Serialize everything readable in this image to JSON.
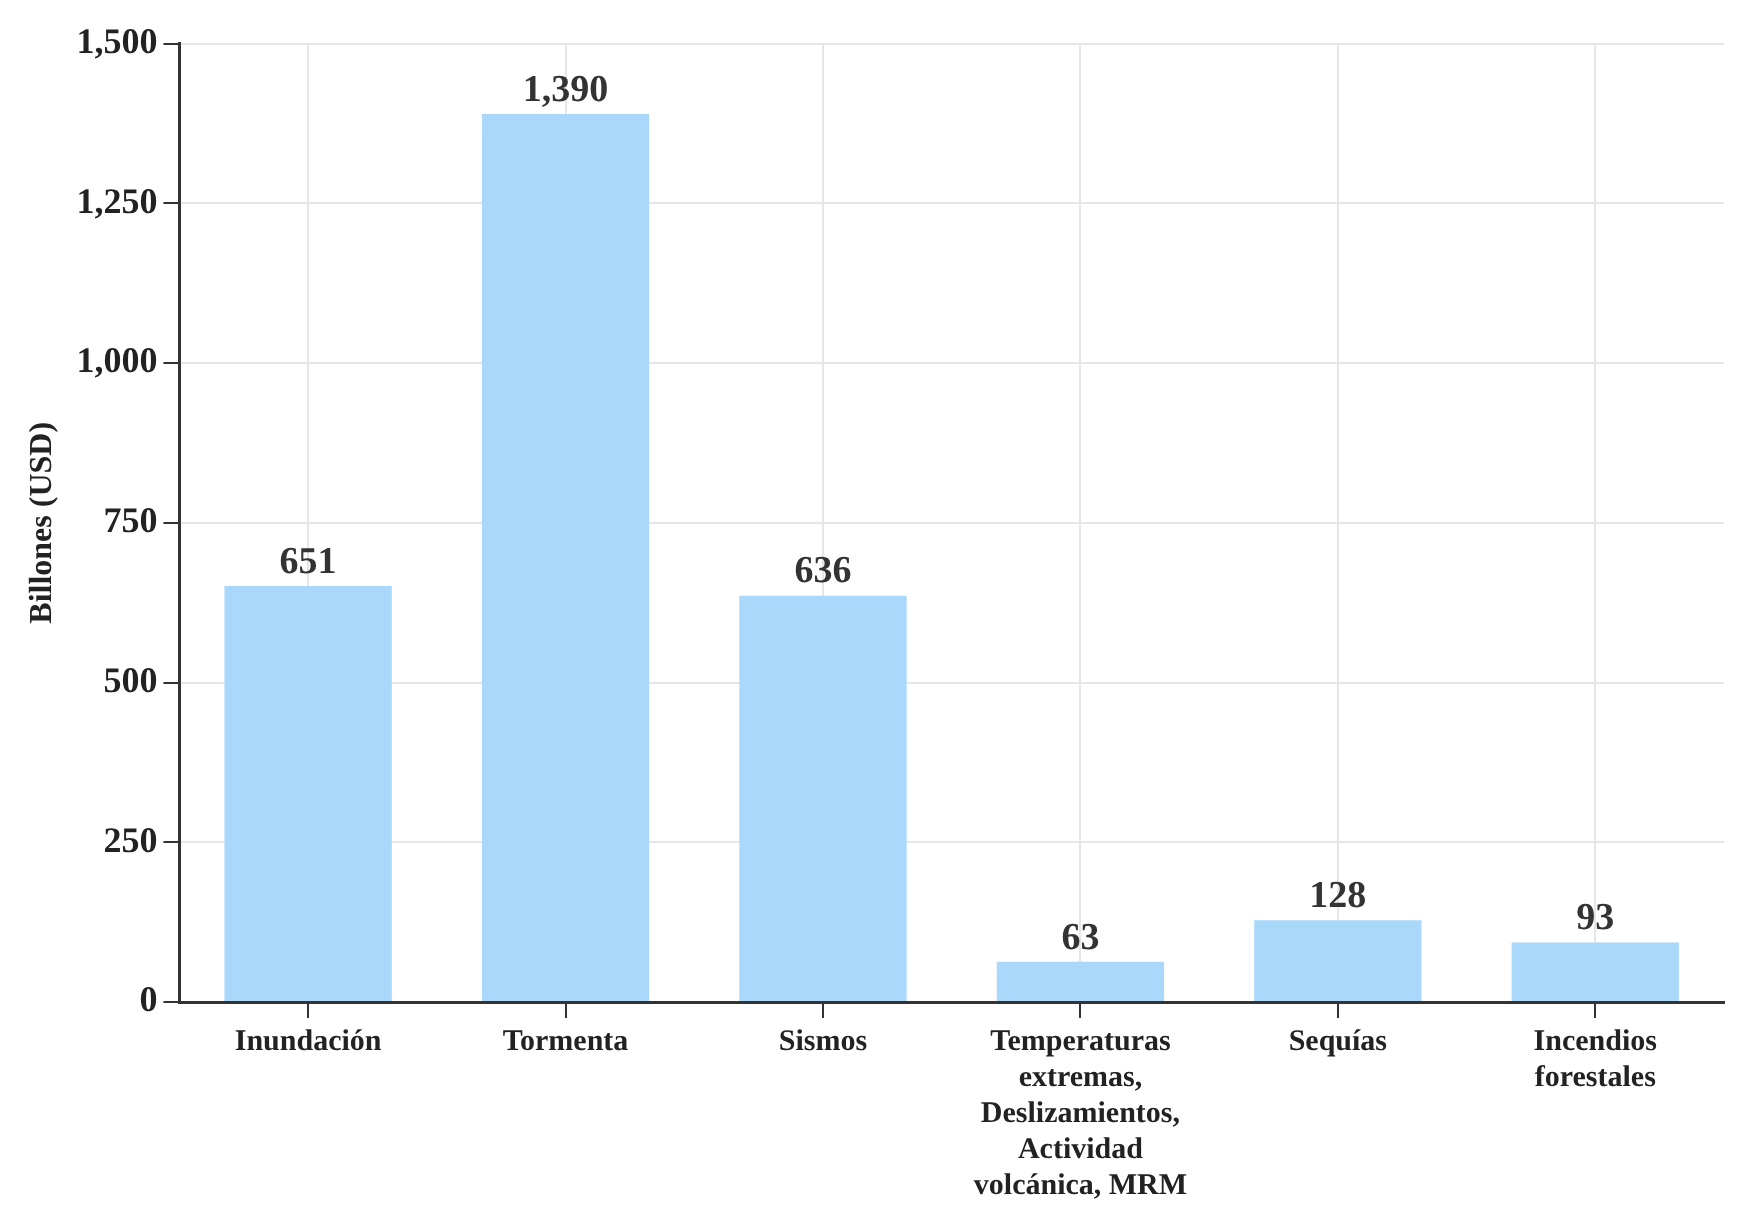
{
  "chart_data": {
    "type": "bar",
    "ylabel": "Billones (USD)",
    "categories": [
      "Inundación",
      "Tormenta",
      "Sismos",
      "Temperaturas extremas, Deslizamientos, Actividad volcánica, MRM",
      "Sequías",
      "Incendios forestales"
    ],
    "values": [
      651,
      1390,
      636,
      63,
      128,
      93
    ],
    "value_labels": [
      "651",
      "1,390",
      "636",
      "63",
      "128",
      "93"
    ],
    "color": "#aad8fb",
    "ylim": [
      0,
      1500
    ],
    "yticks": [
      0,
      250,
      500,
      750,
      {
        "value": 1000,
        "label": "1,000"
      },
      {
        "value": 1250,
        "label": "1,250"
      },
      {
        "value": 1500,
        "label": "1,500"
      }
    ],
    "grid": true
  }
}
